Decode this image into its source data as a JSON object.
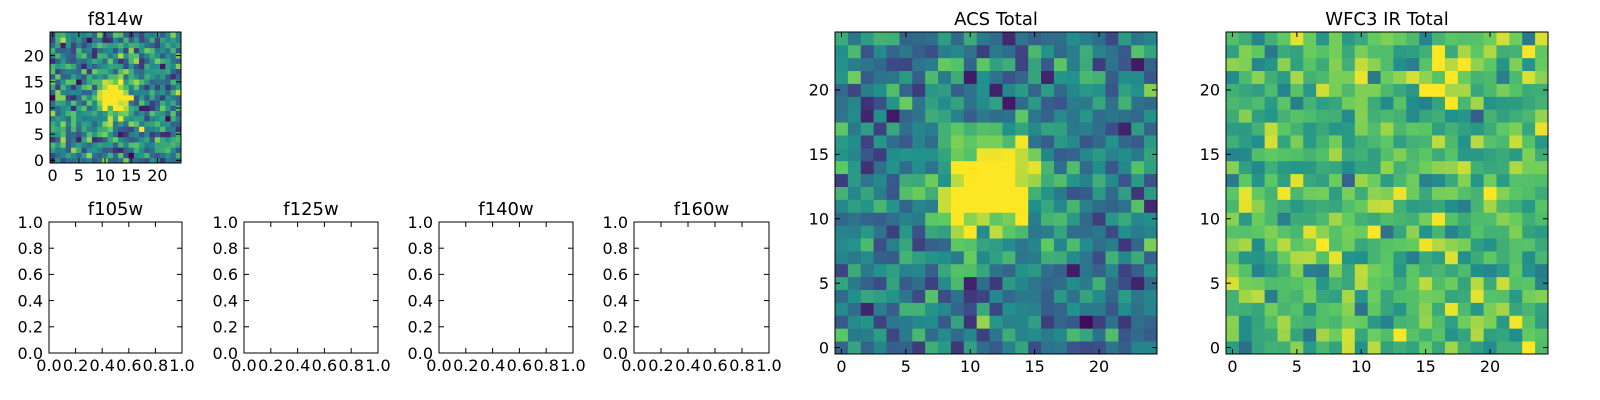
{
  "colors": {
    "colormap": "viridis",
    "colormap_stops": [
      "#440154",
      "#3b528b",
      "#21918c",
      "#5ec962",
      "#fde725"
    ],
    "frame": "#000000",
    "background": "#ffffff"
  },
  "chart_data": [
    {
      "id": "f814w",
      "type": "heatmap",
      "title": "f814w",
      "xlabel": "",
      "ylabel": "",
      "grid_size": [
        25,
        25
      ],
      "xlim": [
        -0.5,
        24.5
      ],
      "ylim": [
        -0.5,
        24.5
      ],
      "xticks": [
        0,
        5,
        10,
        15,
        20
      ],
      "xtick_labels": [
        "0",
        "5",
        "10",
        "15",
        "20"
      ],
      "yticks": [
        0,
        5,
        10,
        15,
        20
      ],
      "ytick_labels": [
        "0",
        "5",
        "10",
        "15",
        "20"
      ],
      "source": {
        "center": [
          11.5,
          12.5
        ],
        "sigma": 2.2,
        "peak": 1.0,
        "background": 0.45,
        "noise": 0.38,
        "seed": 11
      }
    },
    {
      "id": "f105w",
      "type": "empty",
      "title": "f105w",
      "xlim": [
        0,
        1
      ],
      "ylim": [
        0,
        1
      ],
      "xticks": [
        0,
        0.2,
        0.4,
        0.6,
        0.8,
        1.0
      ],
      "xtick_labels": [
        "0.0",
        "0.2",
        "0.4",
        "0.6",
        "0.8",
        "1.0"
      ],
      "yticks": [
        0,
        0.2,
        0.4,
        0.6,
        0.8,
        1.0
      ],
      "ytick_labels": [
        "0.0",
        "0.2",
        "0.4",
        "0.6",
        "0.8",
        "1.0"
      ]
    },
    {
      "id": "f125w",
      "type": "empty",
      "title": "f125w",
      "xlim": [
        0,
        1
      ],
      "ylim": [
        0,
        1
      ],
      "xticks": [
        0,
        0.2,
        0.4,
        0.6,
        0.8,
        1.0
      ],
      "xtick_labels": [
        "0.0",
        "0.2",
        "0.4",
        "0.6",
        "0.8",
        "1.0"
      ],
      "yticks": [
        0,
        0.2,
        0.4,
        0.6,
        0.8,
        1.0
      ],
      "ytick_labels": [
        "0.0",
        "0.2",
        "0.4",
        "0.6",
        "0.8",
        "1.0"
      ]
    },
    {
      "id": "f140w",
      "type": "empty",
      "title": "f140w",
      "xlim": [
        0,
        1
      ],
      "ylim": [
        0,
        1
      ],
      "xticks": [
        0,
        0.2,
        0.4,
        0.6,
        0.8,
        1.0
      ],
      "xtick_labels": [
        "0.0",
        "0.2",
        "0.4",
        "0.6",
        "0.8",
        "1.0"
      ],
      "yticks": [
        0,
        0.2,
        0.4,
        0.6,
        0.8,
        1.0
      ],
      "ytick_labels": [
        "0.0",
        "0.2",
        "0.4",
        "0.6",
        "0.8",
        "1.0"
      ]
    },
    {
      "id": "f160w",
      "type": "empty",
      "title": "f160w",
      "xlim": [
        0,
        1
      ],
      "ylim": [
        0,
        1
      ],
      "xticks": [
        0,
        0.2,
        0.4,
        0.6,
        0.8,
        1.0
      ],
      "xtick_labels": [
        "0.0",
        "0.2",
        "0.4",
        "0.6",
        "0.8",
        "1.0"
      ],
      "yticks": [
        0,
        0.2,
        0.4,
        0.6,
        0.8,
        1.0
      ],
      "ytick_labels": [
        "0.0",
        "0.2",
        "0.4",
        "0.6",
        "0.8",
        "1.0"
      ]
    },
    {
      "id": "acs-total",
      "type": "heatmap",
      "title": "ACS Total",
      "xlabel": "",
      "ylabel": "",
      "grid_size": [
        25,
        25
      ],
      "xlim": [
        -0.5,
        24.5
      ],
      "ylim": [
        -0.5,
        24.5
      ],
      "xticks": [
        0,
        5,
        10,
        15,
        20
      ],
      "xtick_labels": [
        "0",
        "5",
        "10",
        "15",
        "20"
      ],
      "yticks": [
        0,
        5,
        10,
        15,
        20
      ],
      "ytick_labels": [
        "0",
        "5",
        "10",
        "15",
        "20"
      ],
      "source": {
        "center": [
          11.5,
          12.5
        ],
        "sigma": 2.6,
        "peak": 0.95,
        "background": 0.42,
        "noise": 0.3,
        "seed": 23
      }
    },
    {
      "id": "wfc3-ir-total",
      "type": "heatmap",
      "title": "WFC3 IR Total",
      "xlabel": "",
      "ylabel": "",
      "grid_size": [
        25,
        25
      ],
      "xlim": [
        -0.5,
        24.5
      ],
      "ylim": [
        -0.5,
        24.5
      ],
      "xticks": [
        0,
        5,
        10,
        15,
        20
      ],
      "xtick_labels": [
        "0",
        "5",
        "10",
        "15",
        "20"
      ],
      "yticks": [
        0,
        5,
        10,
        15,
        20
      ],
      "ytick_labels": [
        "0",
        "5",
        "10",
        "15",
        "20"
      ],
      "source": {
        "center": [
          17,
          21
        ],
        "sigma": 1.2,
        "peak": 0.35,
        "background": 0.68,
        "noise": 0.28,
        "seed": 37
      }
    }
  ]
}
